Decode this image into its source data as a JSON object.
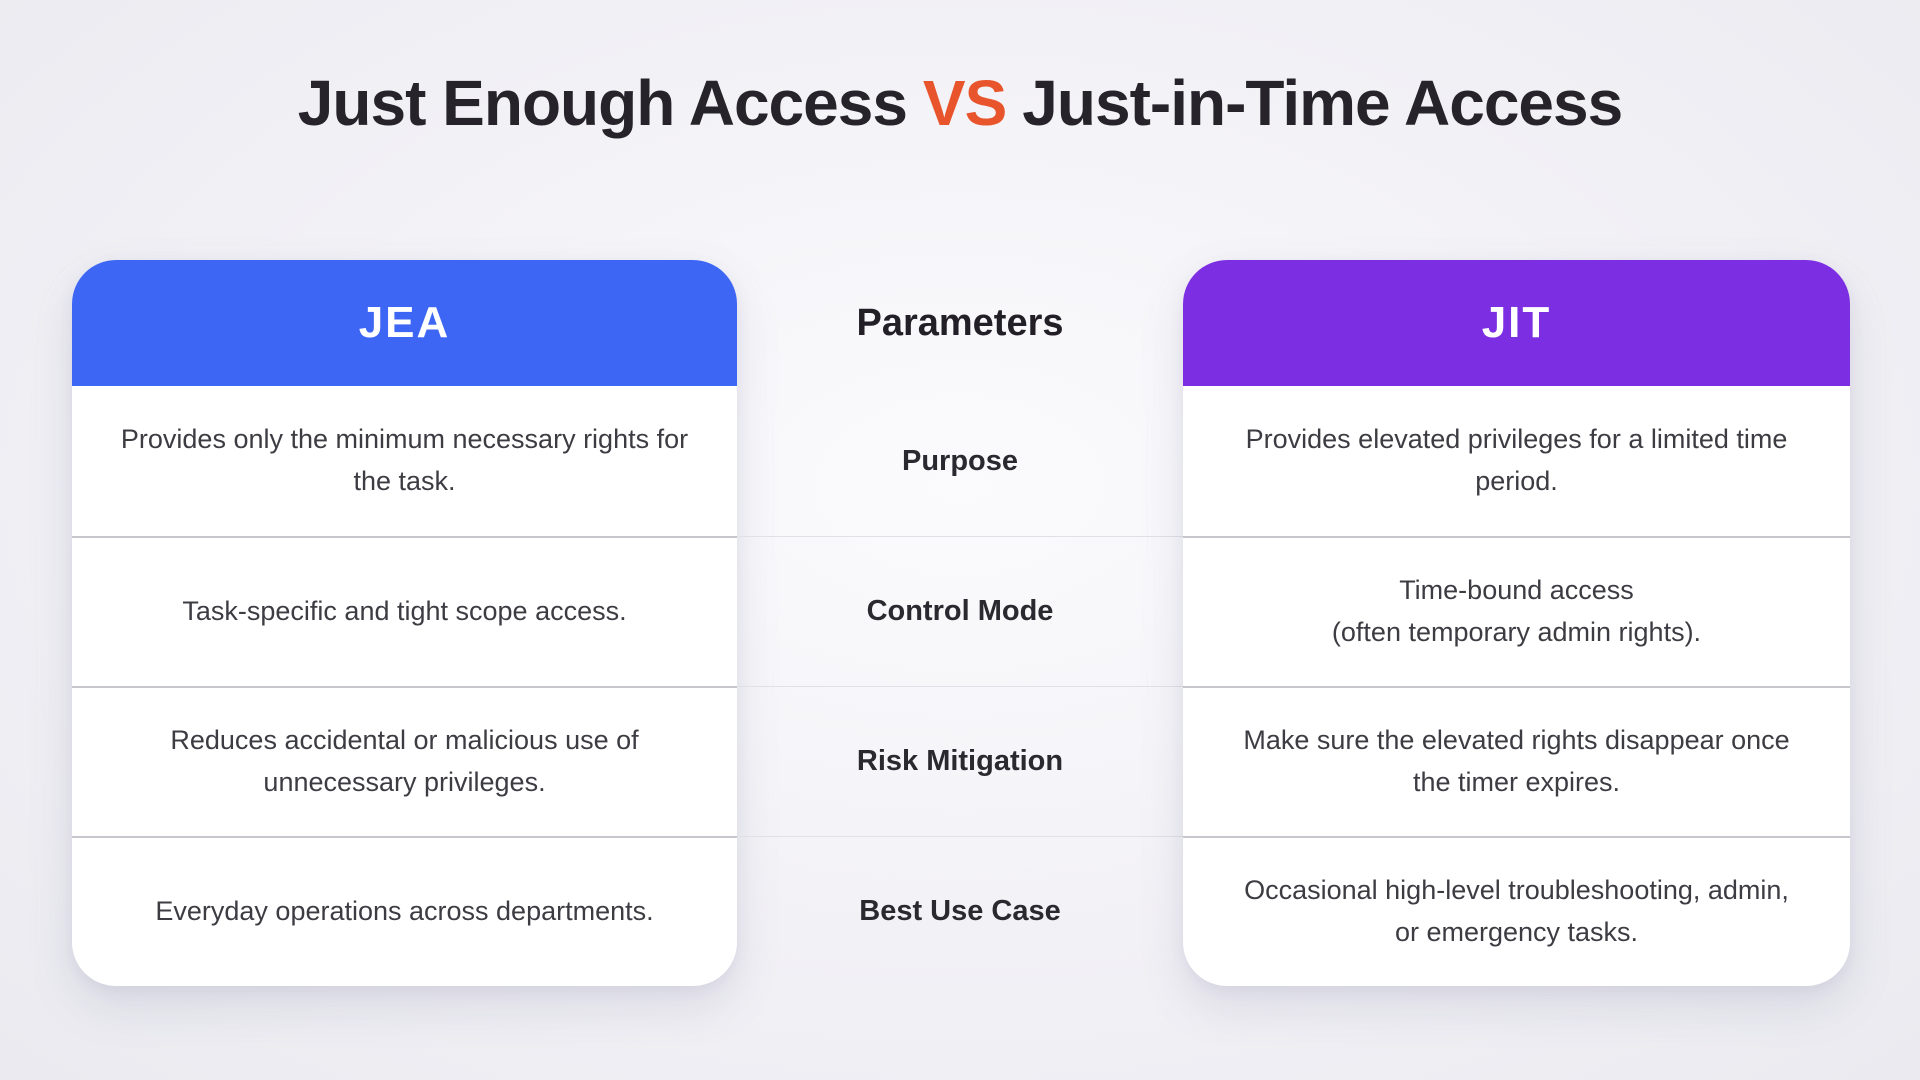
{
  "page": {
    "title_part1": "Just Enough Access",
    "title_vs": "VS",
    "title_part2": "Just-in-Time Access"
  },
  "colors": {
    "jea_header_blue": "#3D66F5",
    "jit_header_purple": "#7C2EE2",
    "vs_accent_orange": "#E8552D",
    "background": "#F1F0F6",
    "card_divider": "#C7C6CC",
    "middle_divider": "#E1E0E7",
    "title_text": "#26232B",
    "body_text": "#3E3C43"
  },
  "table": {
    "jea_header": "JEA",
    "parameters_header": "Parameters",
    "jit_header": "JIT",
    "rows": [
      {
        "parameter": "Purpose",
        "jea": "Provides only the minimum necessary rights for the task.",
        "jit": "Provides elevated privileges for a limited time period."
      },
      {
        "parameter": "Control Mode",
        "jea": "Task-specific and tight scope access.",
        "jit": "Time-bound access\n(often temporary admin rights)."
      },
      {
        "parameter": "Risk Mitigation",
        "jea": "Reduces accidental or malicious use of unnecessary privileges.",
        "jit": "Make sure the elevated rights disappear once the timer expires."
      },
      {
        "parameter": "Best Use Case",
        "jea": "Everyday operations across departments.",
        "jit": "Occasional high-level troubleshooting, admin, or emergency tasks."
      }
    ]
  }
}
